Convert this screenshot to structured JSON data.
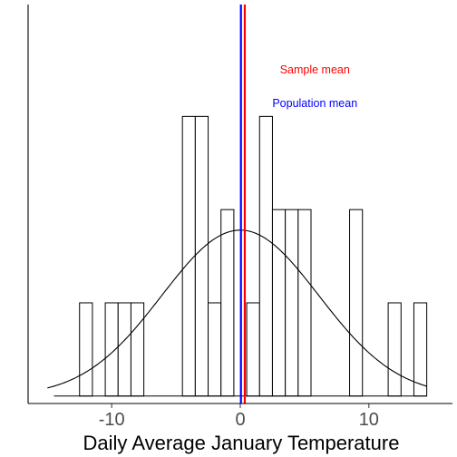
{
  "chart_data": {
    "type": "bar",
    "xlabel": "Daily Average January Temperature",
    "ylabel": "",
    "xlim": [
      -16.5,
      16.5
    ],
    "ylim": [
      -0.08,
      4.2
    ],
    "x_ticks": [
      -10,
      0,
      10
    ],
    "x_tick_labels": [
      "-10",
      "0",
      "10"
    ],
    "bin_width": 1,
    "bins": [
      {
        "x": -12,
        "count": 1
      },
      {
        "x": -10,
        "count": 1
      },
      {
        "x": -9,
        "count": 1
      },
      {
        "x": -8,
        "count": 1
      },
      {
        "x": -4,
        "count": 3
      },
      {
        "x": -3,
        "count": 3
      },
      {
        "x": -2,
        "count": 1
      },
      {
        "x": -1,
        "count": 2
      },
      {
        "x": 1,
        "count": 1
      },
      {
        "x": 2,
        "count": 3
      },
      {
        "x": 3,
        "count": 2
      },
      {
        "x": 4,
        "count": 2
      },
      {
        "x": 5,
        "count": 2
      },
      {
        "x": 9,
        "count": 2
      },
      {
        "x": 12,
        "count": 1
      },
      {
        "x": 14,
        "count": 1
      }
    ],
    "baseline_x": [
      -14.5,
      14.5
    ],
    "density_curve": {
      "mean": 0,
      "sd": 6.1,
      "peak": 1.78,
      "x_range": [
        -15,
        14.5
      ]
    },
    "annotations": [
      {
        "label": "Sample mean",
        "x": 0.35,
        "color": "#ff0000",
        "label_x": 5.8,
        "label_y": 3.46
      },
      {
        "label": "Population mean",
        "x": 0.05,
        "color": "#0000ff",
        "label_x": 5.8,
        "label_y": 3.1
      }
    ],
    "grid": false,
    "legend": "none"
  }
}
